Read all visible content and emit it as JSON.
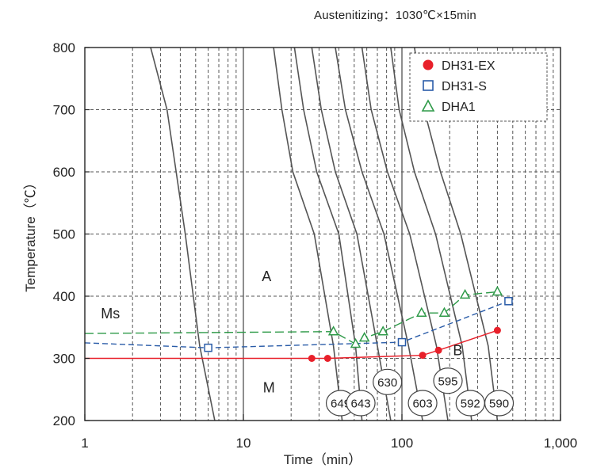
{
  "subtitle": "Austenitizing：1030℃×15min",
  "chart_data": {
    "type": "line",
    "xscale": "log",
    "xlim": [
      1,
      1000
    ],
    "ylim": [
      200,
      800
    ],
    "xticks": [
      "1",
      "10",
      "100",
      "1,000"
    ],
    "xtick_values": [
      1,
      10,
      100,
      1000
    ],
    "yticks": [
      "800",
      "700",
      "600",
      "500",
      "400",
      "300",
      "200"
    ],
    "ytick_values": [
      800,
      700,
      600,
      500,
      400,
      300,
      200
    ],
    "xlabel": "Time（min）",
    "ylabel": "Temperature（℃）",
    "grid": true,
    "legend_position": "top-right",
    "colors": {
      "DH31-EX": "#e8202a",
      "DH31-S": "#2a5ca8",
      "DHA1": "#2e9a48",
      "curve": "#555555"
    },
    "series": [
      {
        "name": "DH31-EX",
        "marker": "filled-circle",
        "x": [
          1,
          27,
          34,
          135,
          170,
          400
        ],
        "y": [
          300,
          300,
          300,
          305,
          313,
          345
        ]
      },
      {
        "name": "DH31-S",
        "marker": "open-square",
        "x": [
          1,
          6,
          100,
          470
        ],
        "y": [
          325,
          317,
          326,
          392
        ]
      },
      {
        "name": "DHA1",
        "marker": "open-triangle",
        "x": [
          1,
          37,
          51,
          58,
          76,
          133,
          185,
          250,
          400
        ],
        "y": [
          340,
          343,
          323,
          333,
          343,
          373,
          373,
          402,
          407
        ]
      }
    ],
    "cooling_curves": [
      {
        "x": [
          2.6,
          3.3,
          4.3,
          5.3,
          6.6
        ],
        "y": [
          800,
          700,
          500,
          320,
          200
        ]
      },
      {
        "x": [
          15.5,
          17.5,
          20.5,
          28,
          37,
          42
        ],
        "y": [
          800,
          700,
          600,
          500,
          320,
          200
        ]
      },
      {
        "x": [
          21,
          24,
          29,
          40,
          51,
          56
        ],
        "y": [
          800,
          700,
          600,
          500,
          320,
          200
        ]
      },
      {
        "x": [
          27,
          31,
          38,
          52,
          70,
          85
        ],
        "y": [
          800,
          700,
          600,
          500,
          320,
          200
        ]
      },
      {
        "x": [
          38,
          44,
          56,
          77,
          110,
          135
        ],
        "y": [
          800,
          700,
          600,
          500,
          320,
          200
        ]
      },
      {
        "x": [
          56,
          64,
          81,
          112,
          165,
          195
        ],
        "y": [
          800,
          700,
          600,
          500,
          320,
          200
        ]
      },
      {
        "x": [
          85,
          96,
          120,
          163,
          240,
          275
        ],
        "y": [
          800,
          700,
          600,
          500,
          320,
          200
        ]
      },
      {
        "x": [
          120,
          138,
          175,
          235,
          350,
          400
        ],
        "y": [
          800,
          700,
          600,
          500,
          320,
          200
        ]
      }
    ],
    "hardness_labels": [
      {
        "text": "649",
        "x": 41,
        "y": 228
      },
      {
        "text": "643",
        "x": 55,
        "y": 228
      },
      {
        "text": "630",
        "x": 81,
        "y": 262
      },
      {
        "text": "603",
        "x": 135,
        "y": 228
      },
      {
        "text": "595",
        "x": 195,
        "y": 264
      },
      {
        "text": "592",
        "x": 270,
        "y": 228
      },
      {
        "text": "590",
        "x": 410,
        "y": 228
      }
    ],
    "region_labels": [
      {
        "text": "A",
        "x": 14,
        "y": 432
      },
      {
        "text": "Ms",
        "x": 1.45,
        "y": 372
      },
      {
        "text": "M",
        "x": 14.5,
        "y": 253
      },
      {
        "text": "B",
        "x": 225,
        "y": 313
      }
    ]
  }
}
